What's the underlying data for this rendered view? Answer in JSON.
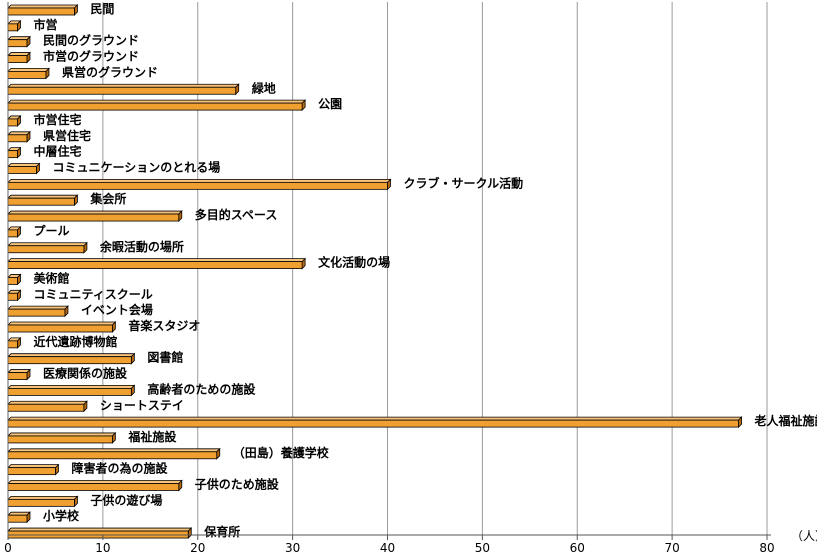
{
  "chart_data": {
    "type": "bar",
    "orientation": "horizontal",
    "categories": [
      "民間",
      "市営",
      "民間のグラウンド",
      "市営のグラウンド",
      "県営のグラウンド",
      "緑地",
      "公園",
      "市営住宅",
      "県営住宅",
      "中層住宅",
      "コミュニケーションのとれる場",
      "クラブ・サークル活動",
      "集会所",
      "多目的スペース",
      "プール",
      "余暇活動の場所",
      "文化活動の場",
      "美術館",
      "コミュニティスクール",
      "イベント会場",
      "音楽スタジオ",
      "近代遺跡博物館",
      "図書館",
      "医療関係の施設",
      "高齢者のための施設",
      "ショートステイ",
      "老人福祉施設",
      "福祉施設",
      "（田島）養護学校",
      "障害者の為の施設",
      "子供のため施設",
      "子供の遊び場",
      "小学校",
      "保育所"
    ],
    "values": [
      7,
      1,
      2,
      2,
      4,
      24,
      31,
      1,
      2,
      1,
      3,
      40,
      7,
      18,
      1,
      8,
      31,
      1,
      1,
      6,
      11,
      1,
      13,
      2,
      13,
      8,
      77,
      11,
      22,
      5,
      18,
      7,
      2,
      19
    ],
    "xlim": [
      0,
      80
    ],
    "xticks": [
      0,
      10,
      20,
      30,
      40,
      50,
      60,
      70,
      80
    ],
    "xlabel": "（人）",
    "grid": true,
    "bar_color": "#f0a030"
  }
}
